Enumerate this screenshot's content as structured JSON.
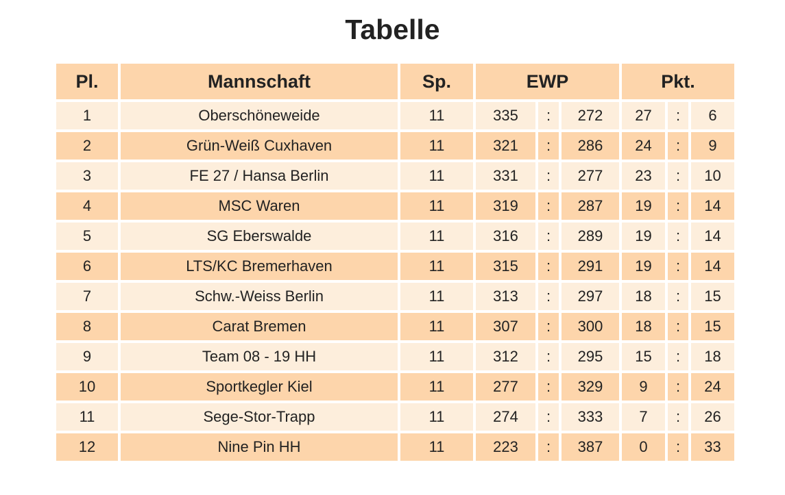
{
  "title": "Tabelle",
  "headers": {
    "place": "Pl.",
    "team": "Mannschaft",
    "games": "Sp.",
    "ewp": "EWP",
    "points": "Pkt."
  },
  "separator": ":",
  "rows": [
    {
      "place": "1",
      "team": "Oberschöneweide",
      "games": "11",
      "ewp_for": "335",
      "ewp_against": "272",
      "pts_for": "27",
      "pts_against": "6"
    },
    {
      "place": "2",
      "team": "Grün-Weiß Cuxhaven",
      "games": "11",
      "ewp_for": "321",
      "ewp_against": "286",
      "pts_for": "24",
      "pts_against": "9"
    },
    {
      "place": "3",
      "team": "FE 27 / Hansa Berlin",
      "games": "11",
      "ewp_for": "331",
      "ewp_against": "277",
      "pts_for": "23",
      "pts_against": "10"
    },
    {
      "place": "4",
      "team": "MSC Waren",
      "games": "11",
      "ewp_for": "319",
      "ewp_against": "287",
      "pts_for": "19",
      "pts_against": "14"
    },
    {
      "place": "5",
      "team": "SG Eberswalde",
      "games": "11",
      "ewp_for": "316",
      "ewp_against": "289",
      "pts_for": "19",
      "pts_against": "14"
    },
    {
      "place": "6",
      "team": "LTS/KC Bremerhaven",
      "games": "11",
      "ewp_for": "315",
      "ewp_against": "291",
      "pts_for": "19",
      "pts_against": "14"
    },
    {
      "place": "7",
      "team": "Schw.-Weiss Berlin",
      "games": "11",
      "ewp_for": "313",
      "ewp_against": "297",
      "pts_for": "18",
      "pts_against": "15"
    },
    {
      "place": "8",
      "team": "Carat Bremen",
      "games": "11",
      "ewp_for": "307",
      "ewp_against": "300",
      "pts_for": "18",
      "pts_against": "15"
    },
    {
      "place": "9",
      "team": "Team 08 - 19 HH",
      "games": "11",
      "ewp_for": "312",
      "ewp_against": "295",
      "pts_for": "15",
      "pts_against": "18"
    },
    {
      "place": "10",
      "team": "Sportkegler Kiel",
      "games": "11",
      "ewp_for": "277",
      "ewp_against": "329",
      "pts_for": "9",
      "pts_against": "24"
    },
    {
      "place": "11",
      "team": "Sege-Stor-Trapp",
      "games": "11",
      "ewp_for": "274",
      "ewp_against": "333",
      "pts_for": "7",
      "pts_against": "26"
    },
    {
      "place": "12",
      "team": "Nine Pin HH",
      "games": "11",
      "ewp_for": "223",
      "ewp_against": "387",
      "pts_for": "0",
      "pts_against": "33"
    }
  ],
  "colors": {
    "header_bg": "#fdd5ab",
    "row_light": "#fdeedc",
    "row_dark": "#fdd5ab",
    "text": "#222222"
  }
}
